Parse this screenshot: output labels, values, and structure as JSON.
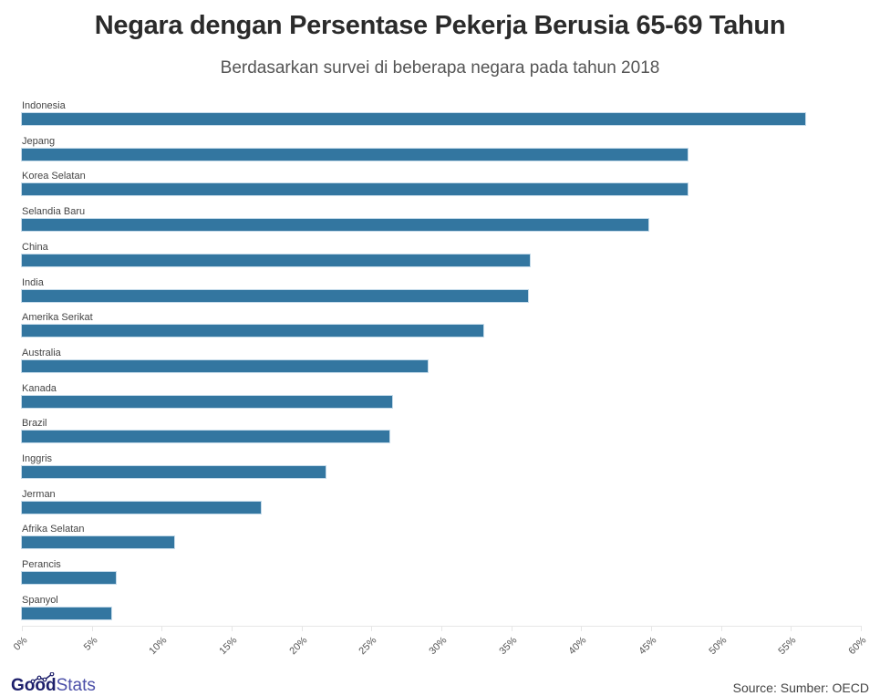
{
  "header": {
    "title": "Negara dengan Persentase Pekerja Berusia 65-69 Tahun",
    "subtitle": "Berdasarkan survei di beberapa negara pada tahun 2018"
  },
  "footer": {
    "logo_good": "Good",
    "logo_stats": "Stats",
    "source": "Source: Sumber: OECD"
  },
  "colors": {
    "bar": "#3376a0"
  },
  "chart_data": {
    "type": "bar",
    "orientation": "horizontal",
    "title": "Negara dengan Persentase Pekerja Berusia 65-69 Tahun",
    "subtitle": "Berdasarkan survei di beberapa negara pada tahun 2018",
    "xlabel": "",
    "ylabel": "",
    "xlim": [
      0,
      60
    ],
    "grid": false,
    "legend": null,
    "categories": [
      "Indonesia",
      "Jepang",
      "Korea Selatan",
      "Selandia Baru",
      "China",
      "India",
      "Amerika Serikat",
      "Australia",
      "Kanada",
      "Brazil",
      "Inggris",
      "Jerman",
      "Afrika Selatan",
      "Perancis",
      "Spanyol"
    ],
    "values": [
      56.0,
      47.6,
      47.6,
      44.8,
      36.3,
      36.2,
      33.0,
      29.0,
      26.5,
      26.3,
      21.7,
      17.1,
      10.9,
      6.7,
      6.4
    ],
    "unit": "%",
    "x_ticks": [
      "0%",
      "5%",
      "10%",
      "15%",
      "20%",
      "25%",
      "30%",
      "35%",
      "40%",
      "45%",
      "50%",
      "55%",
      "60%"
    ],
    "source": "Source: Sumber: OECD"
  }
}
